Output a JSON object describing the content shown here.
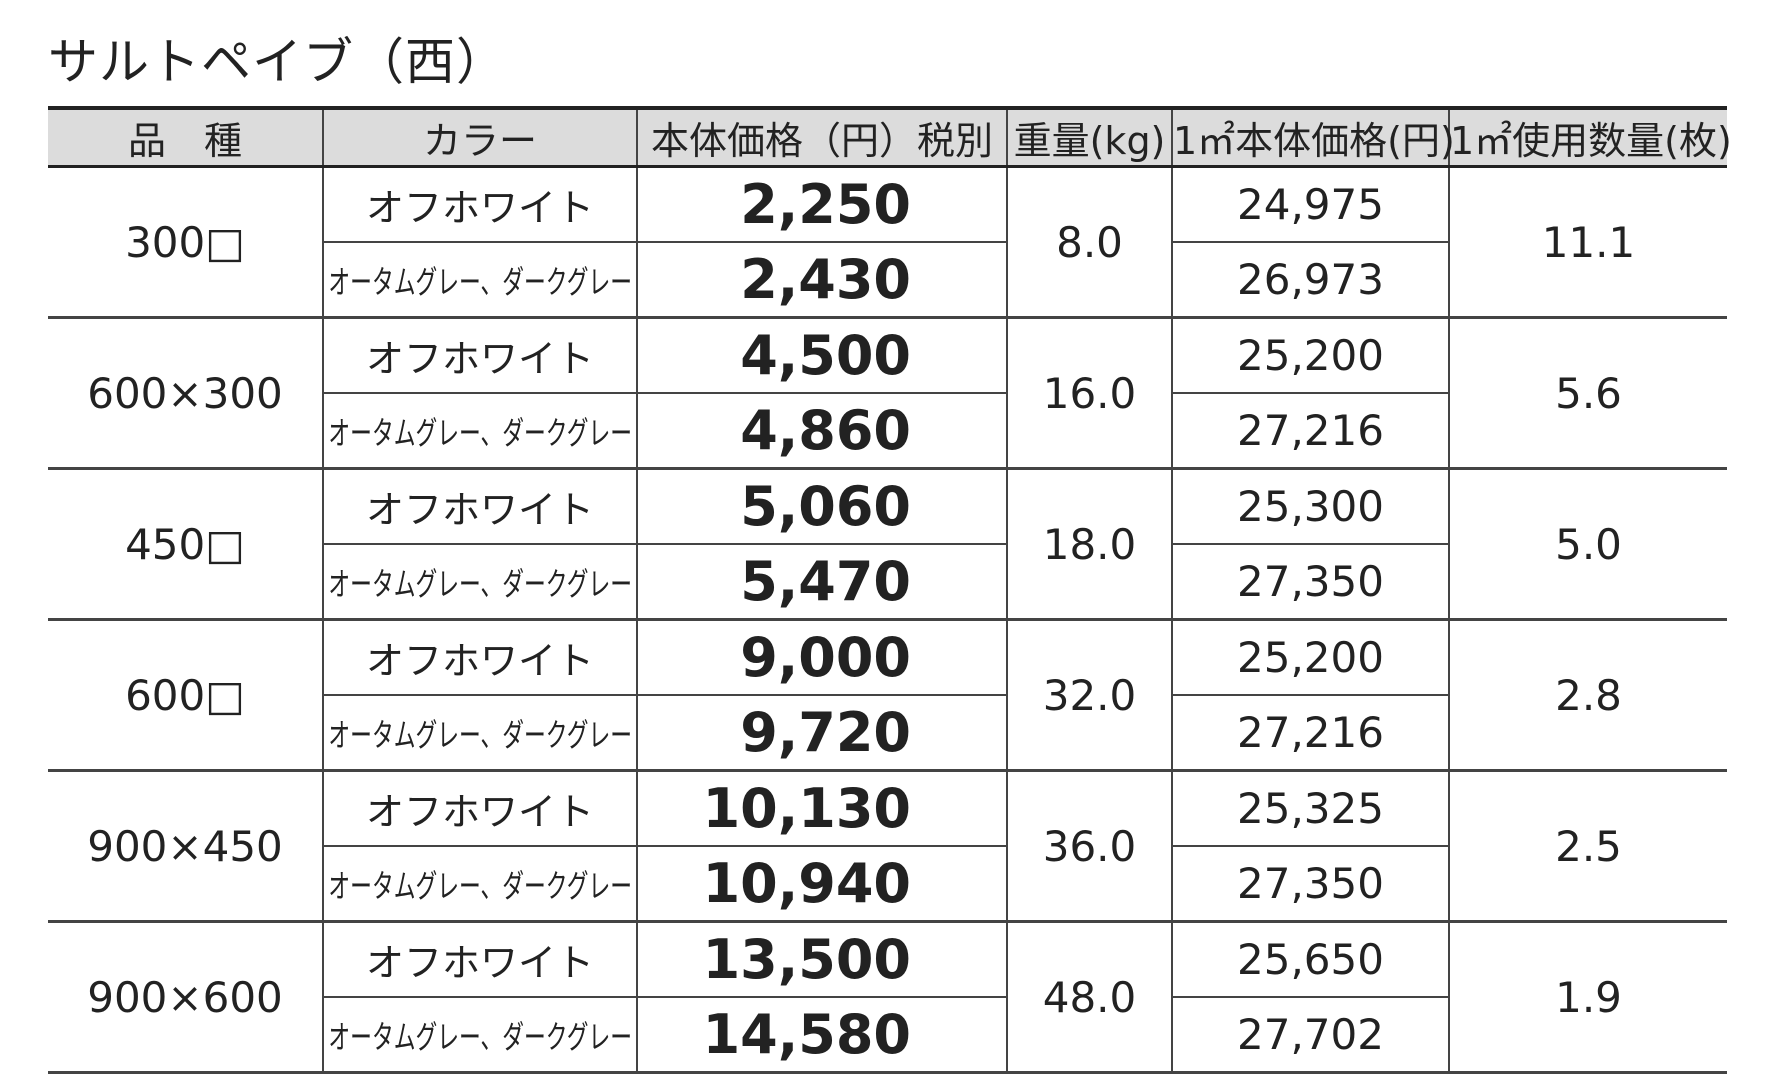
{
  "title": "サルトペイブ（西）",
  "table": {
    "header": [
      "品　種",
      "カラー",
      "本体価格（円）税別",
      "重量(kg)",
      "1㎡本体価格(円)",
      "1㎡使用数量(枚)"
    ],
    "groups": [
      {
        "product": "300□",
        "weight": "8.0",
        "quantity": "11.1",
        "rows": [
          {
            "color": "オフホワイト",
            "price": "2,250",
            "m2_price": "24,975"
          },
          {
            "color": "オータムグレー、ダークグレー",
            "price": "2,430",
            "m2_price": "26,973"
          }
        ]
      },
      {
        "product": "600×300",
        "weight": "16.0",
        "quantity": "5.6",
        "rows": [
          {
            "color": "オフホワイト",
            "price": "4,500",
            "m2_price": "25,200"
          },
          {
            "color": "オータムグレー、ダークグレー",
            "price": "4,860",
            "m2_price": "27,216"
          }
        ]
      },
      {
        "product": "450□",
        "weight": "18.0",
        "quantity": "5.0",
        "rows": [
          {
            "color": "オフホワイト",
            "price": "5,060",
            "m2_price": "25,300"
          },
          {
            "color": "オータムグレー、ダークグレー",
            "price": "5,470",
            "m2_price": "27,350"
          }
        ]
      },
      {
        "product": "600□",
        "weight": "32.0",
        "quantity": "2.8",
        "rows": [
          {
            "color": "オフホワイト",
            "price": "9,000",
            "m2_price": "25,200"
          },
          {
            "color": "オータムグレー、ダークグレー",
            "price": "9,720",
            "m2_price": "27,216"
          }
        ]
      },
      {
        "product": "900×450",
        "weight": "36.0",
        "quantity": "2.5",
        "rows": [
          {
            "color": "オフホワイト",
            "price": "10,130",
            "m2_price": "25,325"
          },
          {
            "color": "オータムグレー、ダークグレー",
            "price": "10,940",
            "m2_price": "27,350"
          }
        ]
      },
      {
        "product": "900×600",
        "weight": "48.0",
        "quantity": "1.9",
        "rows": [
          {
            "color": "オフホワイト",
            "price": "13,500",
            "m2_price": "25,650"
          },
          {
            "color": "オータムグレー、ダークグレー",
            "price": "14,580",
            "m2_price": "27,702"
          }
        ]
      }
    ]
  }
}
